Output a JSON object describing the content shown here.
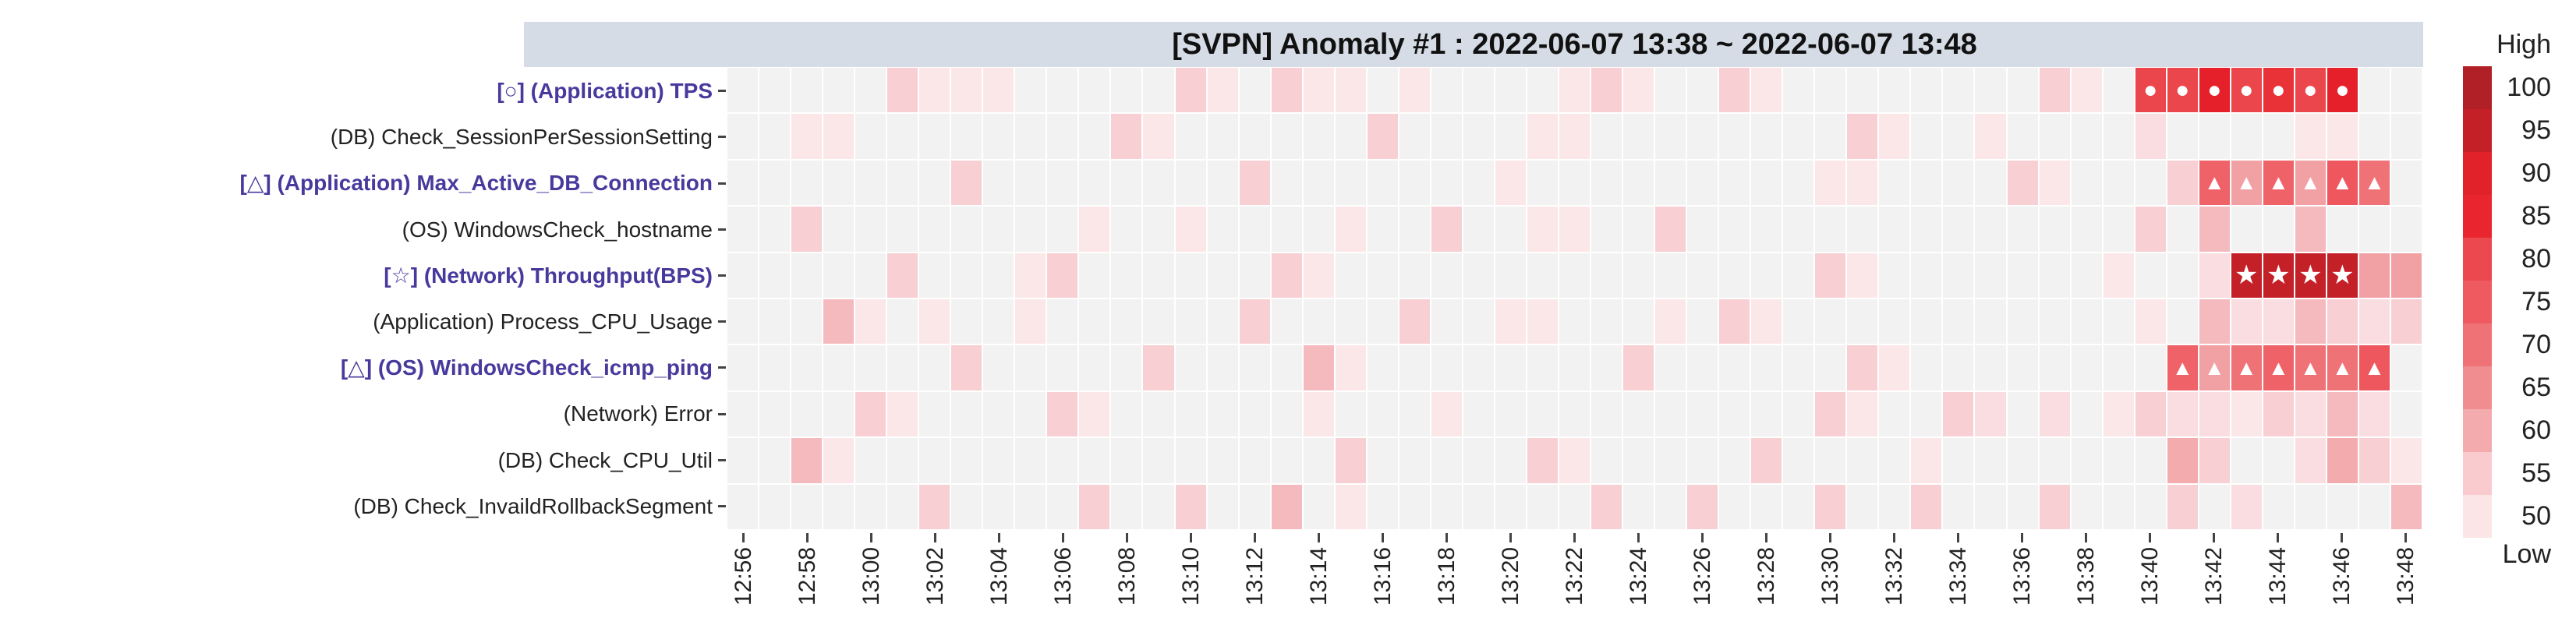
{
  "title": "[SVPN] Anomaly #1 : 2022-06-07 13:38 ~ 2022-06-07 13:48",
  "colors": {
    "title_bg": "#d5dce5",
    "anomaly_label": "#483a9d",
    "normal_label": "#222222",
    "empty_cell": "#f2f2f2",
    "marker": "#ffffff"
  },
  "legend": {
    "high_label": "High",
    "low_label": "Low",
    "entries": [
      {
        "value": "100",
        "color": "#b02026"
      },
      {
        "value": "95",
        "color": "#c32028"
      },
      {
        "value": "90",
        "color": "#e2222b"
      },
      {
        "value": "85",
        "color": "#e92630"
      },
      {
        "value": "80",
        "color": "#ec4850"
      },
      {
        "value": "75",
        "color": "#ee5a60"
      },
      {
        "value": "70",
        "color": "#ef7277"
      },
      {
        "value": "65",
        "color": "#f08d91"
      },
      {
        "value": "60",
        "color": "#f3abae"
      },
      {
        "value": "55",
        "color": "#f9cbce"
      },
      {
        "value": "50",
        "color": "#fce5e6"
      }
    ]
  },
  "chart_data": {
    "type": "heatmap",
    "title": "[SVPN] Anomaly #1 : 2022-06-07 13:38 ~ 2022-06-07 13:48",
    "value_range": [
      50,
      100
    ],
    "columns": [
      "12:56",
      "12:57",
      "12:58",
      "12:59",
      "13:00",
      "13:01",
      "13:02",
      "13:03",
      "13:04",
      "13:05",
      "13:06",
      "13:07",
      "13:08",
      "13:09",
      "13:10",
      "13:11",
      "13:12",
      "13:13",
      "13:14",
      "13:15",
      "13:16",
      "13:17",
      "13:18",
      "13:19",
      "13:20",
      "13:21",
      "13:22",
      "13:23",
      "13:24",
      "13:25",
      "13:26",
      "13:27",
      "13:28",
      "13:29",
      "13:30",
      "13:31",
      "13:32",
      "13:33",
      "13:34",
      "13:35",
      "13:36",
      "13:37",
      "13:38",
      "13:39",
      "13:40",
      "13:41",
      "13:42",
      "13:43",
      "13:44",
      "13:45",
      "13:46",
      "13:47",
      "13:48"
    ],
    "x_tick_labels": [
      "12:56",
      "12:58",
      "13:00",
      "13:02",
      "13:04",
      "13:06",
      "13:08",
      "13:10",
      "13:12",
      "13:14",
      "13:16",
      "13:18",
      "13:20",
      "13:22",
      "13:24",
      "13:26",
      "13:28",
      "13:30",
      "13:32",
      "13:34",
      "13:36",
      "13:38",
      "13:40",
      "13:42",
      "13:44",
      "13:46",
      "13:48"
    ],
    "value_colors": {
      "50": "#fce7e8",
      "52": "#fadde0",
      "55": "#f8cfd2",
      "58": "#f5babd",
      "60": "#f3abae",
      "62": "#f1a0a4",
      "65": "#f08d91",
      "70": "#ef7277",
      "72": "#ee6268",
      "75": "#ed575d",
      "80": "#eb464c",
      "85": "#e93138",
      "90": "#e5202a",
      "95": "#c42028",
      "100": "#b02026"
    },
    "rows": [
      {
        "label": "[○] (Application) TPS",
        "anomaly": true,
        "marker": "circle",
        "marker_cols": [
          44,
          45,
          46,
          47,
          48,
          49,
          50
        ],
        "cells": {
          "5": 55,
          "6": 50,
          "7": 50,
          "8": 50,
          "14": 55,
          "15": 50,
          "17": 55,
          "18": 50,
          "19": 50,
          "21": 50,
          "26": 50,
          "27": 55,
          "28": 50,
          "31": 55,
          "32": 50,
          "41": 55,
          "42": 50,
          "44": 80,
          "45": 80,
          "46": 90,
          "47": 80,
          "48": 85,
          "49": 80,
          "50": 90
        }
      },
      {
        "label": "(DB) Check_SessionPerSessionSetting",
        "anomaly": false,
        "marker": null,
        "marker_cols": [],
        "cells": {
          "2": 50,
          "3": 50,
          "12": 55,
          "13": 50,
          "20": 55,
          "25": 50,
          "26": 50,
          "35": 55,
          "36": 50,
          "39": 50,
          "44": 52,
          "49": 50,
          "50": 50
        }
      },
      {
        "label": "[△] (Application) Max_Active_DB_Connection",
        "anomaly": true,
        "marker": "triangle",
        "marker_cols": [
          46,
          47,
          48,
          49,
          50,
          51
        ],
        "cells": {
          "7": 55,
          "16": 55,
          "24": 50,
          "34": 50,
          "35": 50,
          "40": 55,
          "41": 50,
          "45": 55,
          "46": 72,
          "47": 62,
          "48": 72,
          "49": 62,
          "50": 75,
          "51": 70
        }
      },
      {
        "label": "(OS) WindowsCheck_hostname",
        "anomaly": false,
        "marker": null,
        "marker_cols": [],
        "cells": {
          "2": 55,
          "11": 50,
          "14": 50,
          "19": 50,
          "22": 55,
          "25": 50,
          "26": 50,
          "29": 55,
          "44": 55,
          "46": 58,
          "49": 58
        }
      },
      {
        "label": "[☆] (Network) Throughput(BPS)",
        "anomaly": true,
        "marker": "star",
        "marker_cols": [
          47,
          48,
          49,
          50
        ],
        "cells": {
          "5": 55,
          "9": 50,
          "10": 55,
          "17": 55,
          "18": 50,
          "34": 55,
          "35": 50,
          "43": 50,
          "46": 52,
          "47": 95,
          "48": 95,
          "49": 95,
          "50": 95,
          "51": 62,
          "52": 62
        }
      },
      {
        "label": "(Application) Process_CPU_Usage",
        "anomaly": false,
        "marker": null,
        "marker_cols": [],
        "cells": {
          "3": 58,
          "4": 50,
          "6": 50,
          "9": 50,
          "16": 55,
          "21": 55,
          "24": 50,
          "25": 50,
          "29": 50,
          "31": 55,
          "32": 50,
          "44": 50,
          "46": 58,
          "47": 52,
          "48": 52,
          "49": 58,
          "50": 55,
          "51": 52,
          "52": 55
        }
      },
      {
        "label": "[△] (OS) WindowsCheck_icmp_ping",
        "anomaly": true,
        "marker": "triangle",
        "marker_cols": [
          45,
          46,
          47,
          48,
          49,
          50,
          51
        ],
        "cells": {
          "7": 55,
          "13": 55,
          "18": 58,
          "19": 50,
          "28": 55,
          "35": 55,
          "36": 50,
          "45": 72,
          "46": 62,
          "47": 70,
          "48": 72,
          "49": 70,
          "50": 70,
          "51": 75
        }
      },
      {
        "label": "(Network) Error",
        "anomaly": false,
        "marker": null,
        "marker_cols": [],
        "cells": {
          "4": 55,
          "5": 50,
          "10": 55,
          "11": 50,
          "18": 50,
          "22": 50,
          "34": 55,
          "35": 50,
          "38": 55,
          "39": 52,
          "41": 52,
          "43": 50,
          "44": 55,
          "45": 52,
          "46": 52,
          "47": 50,
          "48": 55,
          "49": 52,
          "50": 58,
          "51": 52
        }
      },
      {
        "label": "(DB) Check_CPU_Util",
        "anomaly": false,
        "marker": null,
        "marker_cols": [],
        "cells": {
          "2": 58,
          "3": 50,
          "19": 55,
          "25": 55,
          "26": 50,
          "32": 55,
          "37": 50,
          "45": 60,
          "46": 55,
          "49": 52,
          "50": 60,
          "51": 55,
          "52": 50
        }
      },
      {
        "label": "(DB) Check_InvaildRollbackSegment",
        "anomaly": false,
        "marker": null,
        "marker_cols": [],
        "cells": {
          "6": 55,
          "11": 55,
          "14": 55,
          "17": 58,
          "19": 50,
          "27": 55,
          "30": 55,
          "34": 55,
          "37": 55,
          "41": 55,
          "45": 55,
          "47": 52,
          "52": 58
        }
      }
    ],
    "legend_position": "right",
    "marker_glyphs": {
      "circle": "●",
      "triangle": "▲",
      "star": "★"
    }
  }
}
